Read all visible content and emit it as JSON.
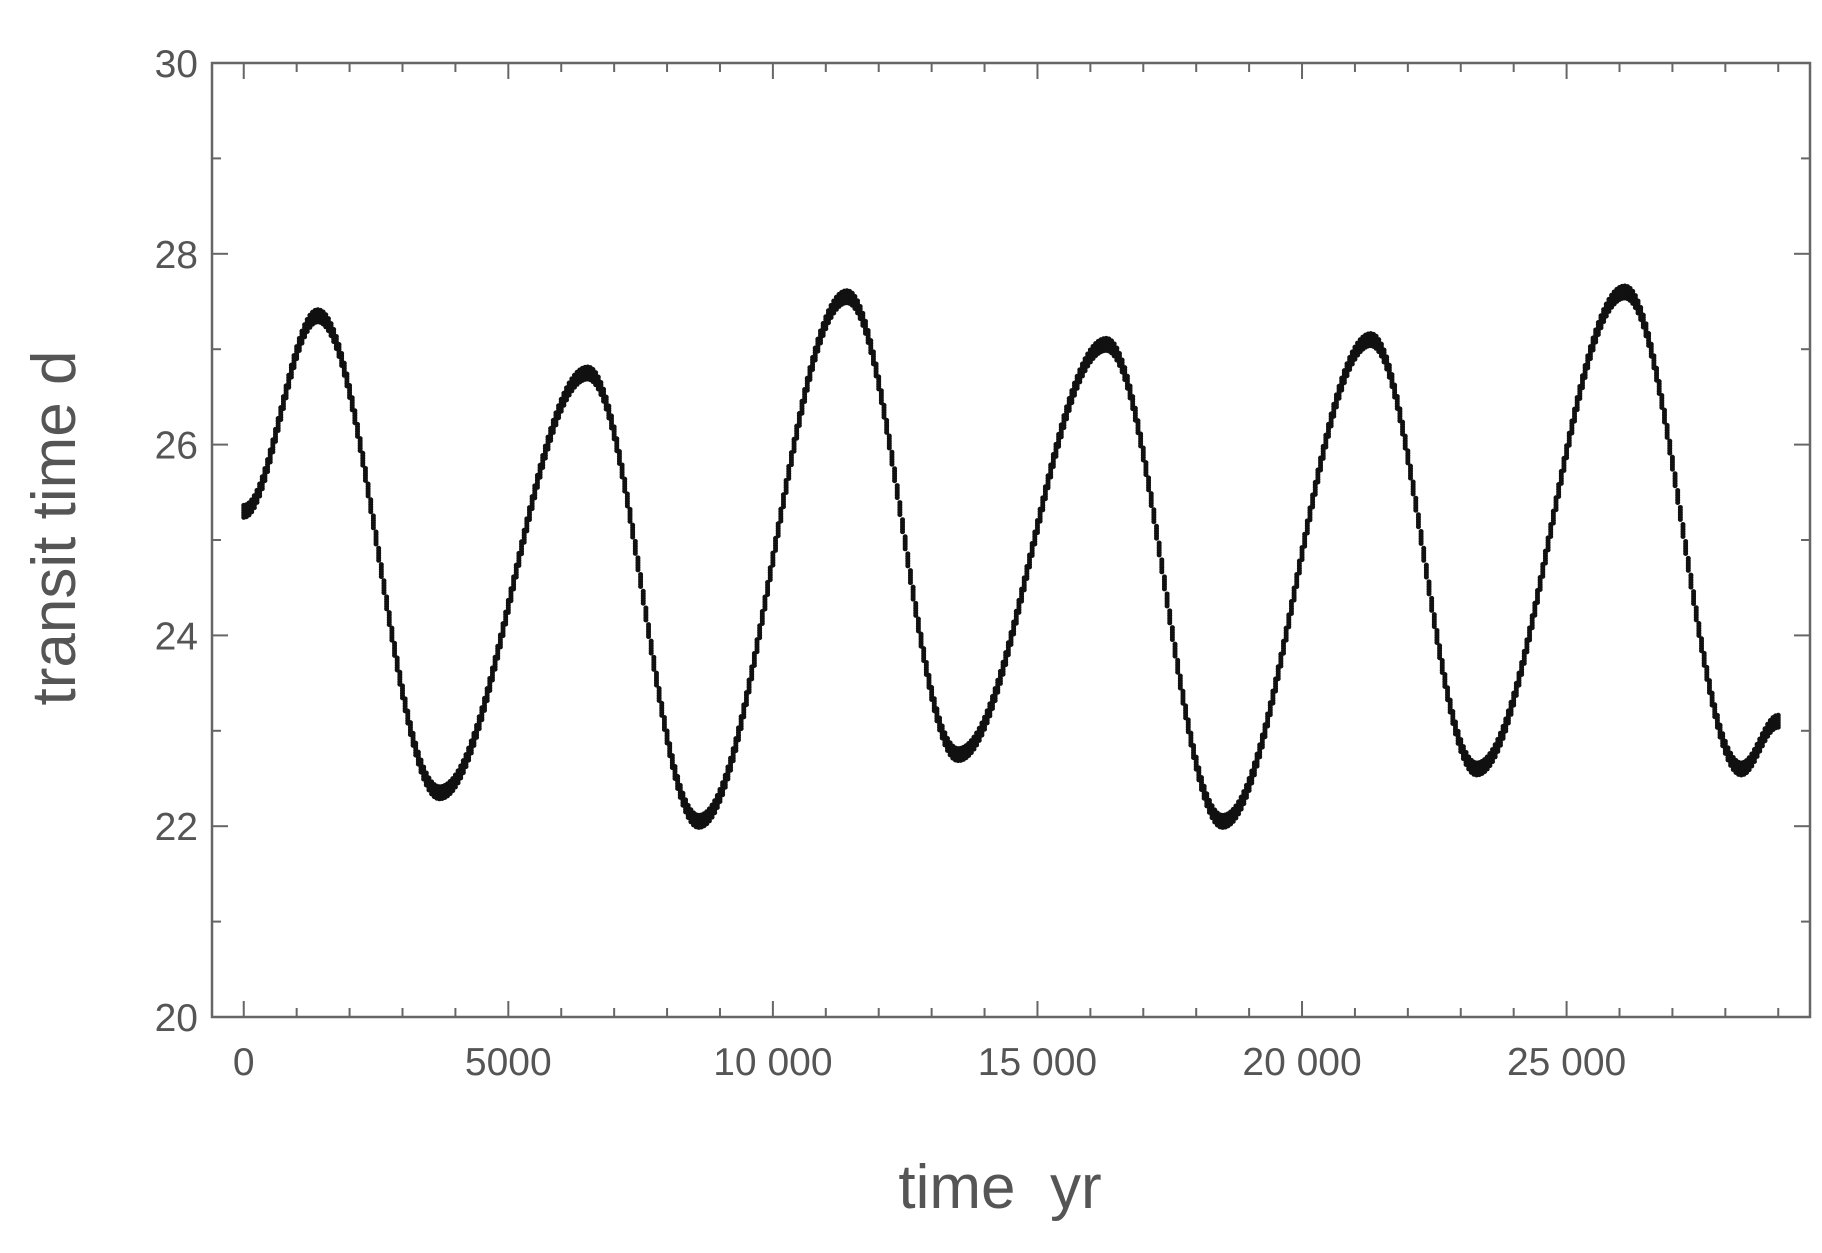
{
  "chart_data": {
    "type": "scatter",
    "title": "",
    "xlabel": "time  yr",
    "ylabel": "transit time d",
    "xlim": [
      -600,
      29600
    ],
    "ylim": [
      20,
      30
    ],
    "x_ticks": [
      0,
      5000,
      10000,
      15000,
      20000,
      25000
    ],
    "x_tick_labels": [
      "0",
      "5000",
      "10 000",
      "15 000",
      "20 000",
      "25 000"
    ],
    "x_minor_step": 1000,
    "y_ticks": [
      20,
      22,
      24,
      26,
      28,
      30
    ],
    "y_tick_labels": [
      "20",
      "22",
      "24",
      "26",
      "28",
      "30"
    ],
    "y_minor_step": 1,
    "grid": false,
    "legend": "none",
    "marker_color": "#111111",
    "series": [
      {
        "x": [
          0,
          1400,
          3700,
          6500,
          8600,
          11400,
          13500,
          16300,
          18500,
          21300,
          23300,
          26100,
          28300,
          29000
        ],
        "y": [
          25.3,
          27.35,
          22.35,
          26.75,
          22.05,
          27.55,
          22.75,
          27.05,
          22.05,
          27.1,
          22.6,
          27.6,
          22.6,
          23.1
        ]
      }
    ]
  }
}
